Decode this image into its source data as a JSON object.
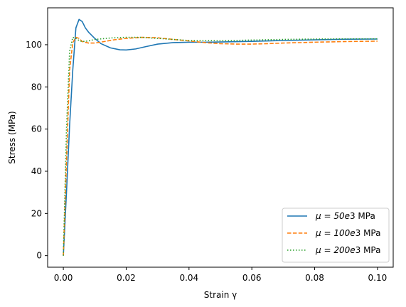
{
  "chart_data": {
    "type": "line",
    "title": "",
    "xlabel": "Strain γ",
    "ylabel": "Stress (MPa)",
    "xlim": [
      -0.005,
      0.105
    ],
    "ylim": [
      -5.5,
      117.5
    ],
    "xticks": [
      0.0,
      0.02,
      0.04,
      0.06,
      0.08,
      0.1
    ],
    "xtick_labels": [
      "0.00",
      "0.02",
      "0.04",
      "0.06",
      "0.08",
      "0.10"
    ],
    "yticks": [
      0,
      20,
      40,
      60,
      80,
      100
    ],
    "ytick_labels": [
      "0",
      "20",
      "40",
      "60",
      "80",
      "100"
    ],
    "grid": false,
    "legend_position": "lower-right",
    "series": [
      {
        "mu_prefix": "μ = 50",
        "mu_suffix": "3 MPa",
        "label": "μ = 50e3 MPa",
        "color": "#1f77b4",
        "linestyle": "solid",
        "points": [
          [
            0.0,
            0.0
          ],
          [
            0.001,
            30.0
          ],
          [
            0.002,
            62.0
          ],
          [
            0.003,
            88.0
          ],
          [
            0.004,
            108.0
          ],
          [
            0.005,
            112.0
          ],
          [
            0.006,
            111.0
          ],
          [
            0.007,
            108.0
          ],
          [
            0.008,
            106.0
          ],
          [
            0.01,
            103.0
          ],
          [
            0.012,
            100.5
          ],
          [
            0.015,
            98.5
          ],
          [
            0.018,
            97.6
          ],
          [
            0.02,
            97.5
          ],
          [
            0.023,
            98.0
          ],
          [
            0.026,
            99.0
          ],
          [
            0.03,
            100.3
          ],
          [
            0.035,
            101.0
          ],
          [
            0.04,
            101.2
          ],
          [
            0.045,
            101.2
          ],
          [
            0.05,
            101.3
          ],
          [
            0.06,
            101.6
          ],
          [
            0.07,
            102.0
          ],
          [
            0.08,
            102.3
          ],
          [
            0.09,
            102.6
          ],
          [
            0.1,
            102.7
          ]
        ]
      },
      {
        "mu_prefix": "μ = 100",
        "mu_suffix": "3 MPa",
        "label": "μ = 100e3 MPa",
        "color": "#ff7f0e",
        "linestyle": "dashed",
        "points": [
          [
            0.0,
            0.0
          ],
          [
            0.001,
            45.0
          ],
          [
            0.002,
            88.0
          ],
          [
            0.003,
            101.0
          ],
          [
            0.004,
            103.5
          ],
          [
            0.005,
            103.0
          ],
          [
            0.006,
            101.5
          ],
          [
            0.008,
            100.8
          ],
          [
            0.01,
            100.8
          ],
          [
            0.013,
            101.5
          ],
          [
            0.016,
            102.3
          ],
          [
            0.02,
            103.0
          ],
          [
            0.025,
            103.5
          ],
          [
            0.03,
            103.3
          ],
          [
            0.035,
            102.5
          ],
          [
            0.04,
            101.8
          ],
          [
            0.045,
            101.0
          ],
          [
            0.05,
            100.5
          ],
          [
            0.055,
            100.3
          ],
          [
            0.06,
            100.3
          ],
          [
            0.065,
            100.5
          ],
          [
            0.07,
            100.8
          ],
          [
            0.08,
            101.2
          ],
          [
            0.09,
            101.5
          ],
          [
            0.1,
            101.7
          ]
        ]
      },
      {
        "mu_prefix": "μ = 200",
        "mu_suffix": "3 MPa",
        "label": "μ = 200e3 MPa",
        "color": "#2ca02c",
        "linestyle": "dotted",
        "points": [
          [
            0.0,
            0.0
          ],
          [
            0.001,
            60.0
          ],
          [
            0.002,
            97.0
          ],
          [
            0.003,
            103.5
          ],
          [
            0.004,
            103.0
          ],
          [
            0.005,
            102.0
          ],
          [
            0.006,
            101.5
          ],
          [
            0.008,
            101.8
          ],
          [
            0.01,
            102.5
          ],
          [
            0.015,
            103.2
          ],
          [
            0.02,
            103.5
          ],
          [
            0.025,
            103.5
          ],
          [
            0.03,
            103.0
          ],
          [
            0.035,
            102.5
          ],
          [
            0.04,
            102.0
          ],
          [
            0.05,
            101.9
          ],
          [
            0.06,
            102.2
          ],
          [
            0.07,
            102.5
          ],
          [
            0.08,
            102.7
          ],
          [
            0.09,
            102.8
          ],
          [
            0.1,
            102.8
          ]
        ]
      }
    ]
  }
}
